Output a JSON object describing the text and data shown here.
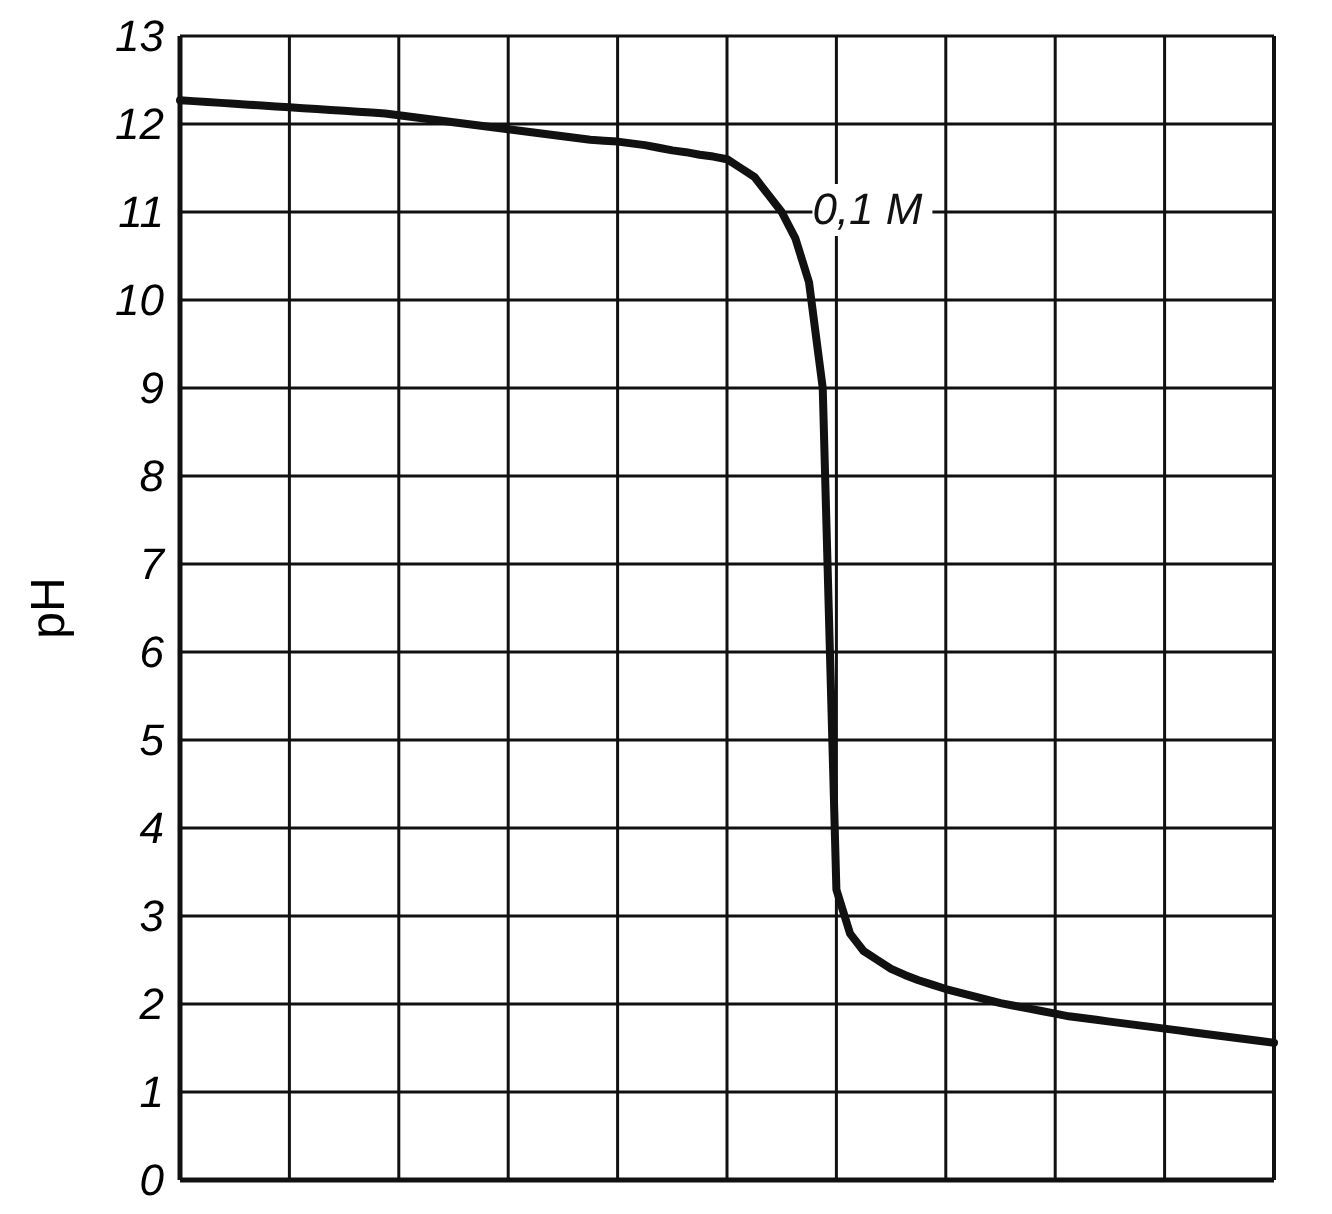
{
  "chart_data": {
    "type": "line",
    "ylabel": "pH",
    "categories": [
      null,
      null,
      null,
      null,
      null,
      null,
      null,
      null,
      null,
      null,
      null,
      null,
      null,
      null,
      null,
      null,
      null,
      null,
      null,
      null,
      null,
      null,
      null,
      null,
      null,
      null,
      null,
      null,
      null,
      null,
      null,
      null,
      null,
      null,
      null,
      null,
      null,
      null,
      null,
      null,
      null,
      null,
      null,
      null,
      null,
      null,
      null,
      null,
      null,
      null,
      null,
      null,
      null,
      null,
      null,
      null,
      null,
      null,
      null,
      null,
      null,
      null,
      null,
      null,
      null,
      null,
      null,
      null,
      null,
      null,
      null,
      null,
      null,
      null,
      null,
      null,
      null,
      null,
      null,
      null,
      null
    ],
    "series": [
      {
        "name": "0,1 M",
        "color": "#111111",
        "values": [
          12.27,
          12.26,
          12.25,
          12.24,
          12.23,
          12.22,
          12.21,
          12.2,
          12.19,
          12.18,
          12.17,
          12.16,
          12.15,
          12.14,
          12.13,
          12.12,
          12.1,
          12.08,
          12.06,
          12.04,
          12.02,
          12.0,
          11.98,
          11.96,
          11.94,
          11.92,
          11.9,
          11.88,
          11.86,
          11.84,
          11.82,
          11.81,
          11.8,
          11.78,
          11.76,
          11.73,
          11.7,
          11.68,
          11.65,
          11.63,
          11.6,
          11.5,
          11.4,
          11.2,
          11.0,
          10.7,
          10.2,
          9.0,
          3.3,
          2.8,
          2.6,
          2.5,
          2.4,
          2.33,
          2.27,
          2.22,
          2.17,
          2.13,
          2.09,
          2.05,
          2.01,
          1.98,
          1.95,
          1.92,
          1.89,
          1.86,
          1.84,
          1.82,
          1.8,
          1.78,
          1.76,
          1.74,
          1.72,
          1.7,
          1.68,
          1.66,
          1.64,
          1.62,
          1.6,
          1.58,
          1.56
        ]
      }
    ],
    "ylim": [
      0,
      13
    ],
    "yticks": [
      0,
      1,
      2,
      3,
      4,
      5,
      6,
      7,
      8,
      9,
      10,
      11,
      12,
      13
    ],
    "grid": true,
    "tick_labels": "y",
    "line_style": "solid",
    "marker": "none"
  }
}
